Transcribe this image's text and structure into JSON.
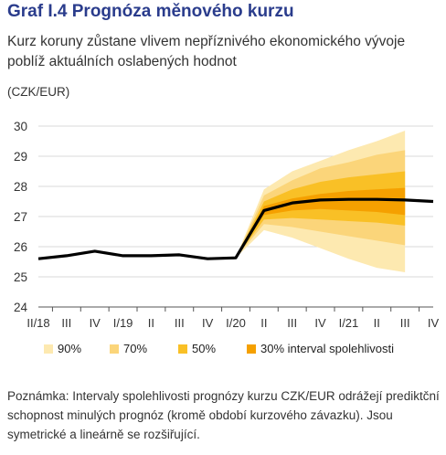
{
  "title": "Graf I.4 Prognóza měnového kurzu",
  "subtitle": "Kurz koruny zůstane vlivem nepříznivého ekonomického vývoje poblíž aktuálních oslabených hodnot",
  "unit": "(CZK/EUR)",
  "legend": [
    {
      "label": "90%",
      "color": "#fde9b0"
    },
    {
      "label": "70%",
      "color": "#fbd57a"
    },
    {
      "label": "50%",
      "color": "#f9c026"
    },
    {
      "label": "30% interval spolehlivosti",
      "color": "#f5a000"
    }
  ],
  "note": "Poznámka: Intervaly spolehlivosti prognózy kurzu CZK/EUR odrážejí prediktční schopnost minulých prognóz (kromě období kurzového závazku). Jsou symetrické a lineárně se rozšiřující.",
  "chart_data": {
    "type": "area",
    "x": [
      "II/18",
      "III",
      "IV",
      "I/19",
      "II",
      "III",
      "IV",
      "I/20",
      "II",
      "III",
      "IV",
      "I/21",
      "II",
      "III",
      "IV"
    ],
    "tick_labels": [
      "II/18",
      "III",
      "IV",
      "I/19",
      "II",
      "III",
      "IV",
      "I/20",
      "II",
      "III",
      "IV",
      "I/21",
      "II",
      "III",
      "IV"
    ],
    "ylim": [
      24,
      30
    ],
    "yticks": [
      24,
      25,
      26,
      27,
      28,
      29,
      30
    ],
    "grid": true,
    "series": [
      {
        "kind": "line",
        "color": "#000000",
        "values": [
          25.6,
          25.7,
          25.85,
          25.7,
          25.7,
          25.73,
          25.6,
          25.63,
          27.2,
          27.45,
          27.55,
          27.57,
          27.57,
          27.55,
          27.5
        ]
      }
    ],
    "bands": [
      {
        "name": "90%",
        "color": "#fde9b0",
        "start_index": 7,
        "lower": [
          25.63,
          26.55,
          26.3,
          25.95,
          25.6,
          25.3,
          25.15
        ],
        "upper": [
          25.63,
          27.9,
          28.5,
          28.85,
          29.2,
          29.5,
          29.85
        ]
      },
      {
        "name": "70%",
        "color": "#fbd57a",
        "start_index": 7,
        "lower": [
          25.63,
          26.75,
          26.65,
          26.5,
          26.35,
          26.2,
          26.05
        ],
        "upper": [
          25.63,
          27.7,
          28.2,
          28.6,
          28.8,
          29.05,
          29.2
        ]
      },
      {
        "name": "50%",
        "color": "#f9c026",
        "start_index": 7,
        "lower": [
          25.63,
          26.9,
          26.95,
          26.9,
          26.85,
          26.8,
          26.7
        ],
        "upper": [
          25.63,
          27.5,
          27.9,
          28.15,
          28.3,
          28.4,
          28.5
        ]
      },
      {
        "name": "30% interval spolehlivosti",
        "color": "#f5a000",
        "start_index": 7,
        "lower": [
          25.63,
          27.05,
          27.2,
          27.25,
          27.2,
          27.15,
          27.05
        ],
        "upper": [
          25.63,
          27.35,
          27.6,
          27.75,
          27.85,
          27.9,
          27.95
        ]
      }
    ]
  }
}
